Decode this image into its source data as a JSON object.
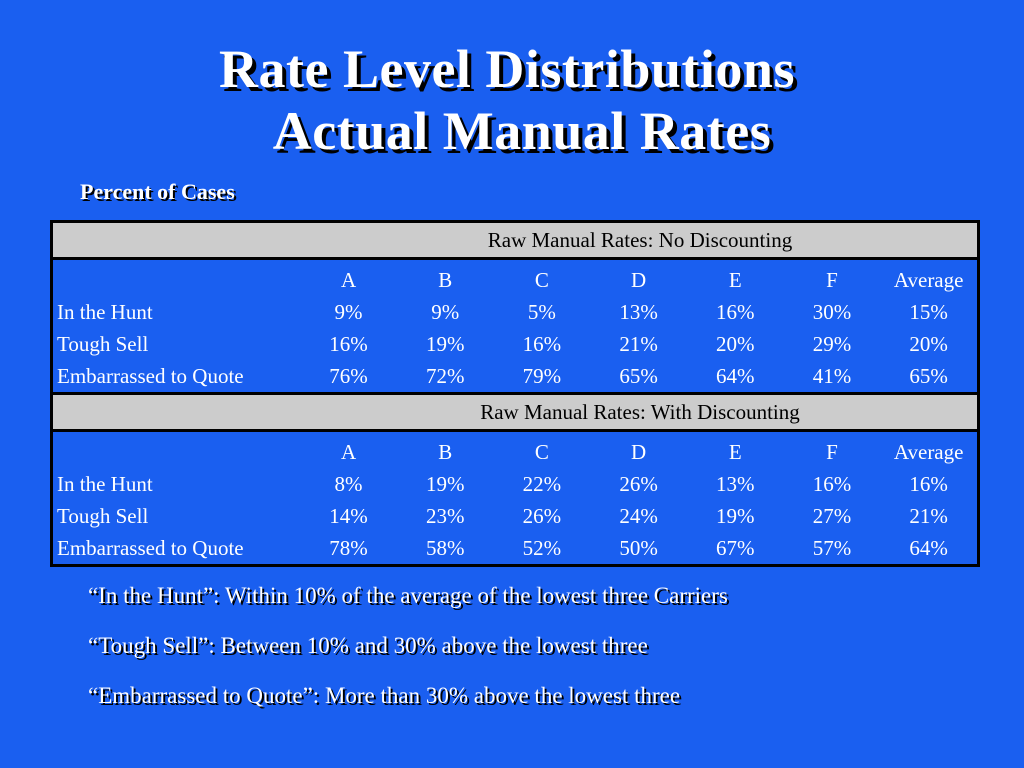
{
  "slide": {
    "title_line1": "Rate Level Distributions",
    "title_line2": "Actual Manual Rates",
    "subtitle": "Percent of Cases"
  },
  "columns": [
    "A",
    "B",
    "C",
    "D",
    "E",
    "F",
    "Average"
  ],
  "tables": [
    {
      "header": "Raw Manual Rates: No Discounting",
      "rows": [
        {
          "label": "In the Hunt",
          "values": [
            "9%",
            "9%",
            "5%",
            "13%",
            "16%",
            "30%",
            "15%"
          ]
        },
        {
          "label": "Tough Sell",
          "values": [
            "16%",
            "19%",
            "16%",
            "21%",
            "20%",
            "29%",
            "20%"
          ]
        },
        {
          "label": "Embarrassed to Quote",
          "values": [
            "76%",
            "72%",
            "79%",
            "65%",
            "64%",
            "41%",
            "65%"
          ]
        }
      ]
    },
    {
      "header": "Raw Manual Rates: With Discounting",
      "rows": [
        {
          "label": "In the Hunt",
          "values": [
            "8%",
            "19%",
            "22%",
            "26%",
            "13%",
            "16%",
            "16%"
          ]
        },
        {
          "label": "Tough Sell",
          "values": [
            "14%",
            "23%",
            "26%",
            "24%",
            "19%",
            "27%",
            "21%"
          ]
        },
        {
          "label": "Embarrassed to Quote",
          "values": [
            "78%",
            "58%",
            "52%",
            "50%",
            "67%",
            "57%",
            "64%"
          ]
        }
      ]
    }
  ],
  "notes": [
    "“In the Hunt”:  Within 10% of the average of the lowest three Carriers",
    "“Tough Sell”: Between 10% and 30% above the lowest three",
    "“Embarrassed to Quote”: More than 30% above the lowest three"
  ],
  "colors": {
    "background": "#1a5ff0",
    "header_band": "#cccccc",
    "text": "#ffffff",
    "border": "#000000"
  }
}
